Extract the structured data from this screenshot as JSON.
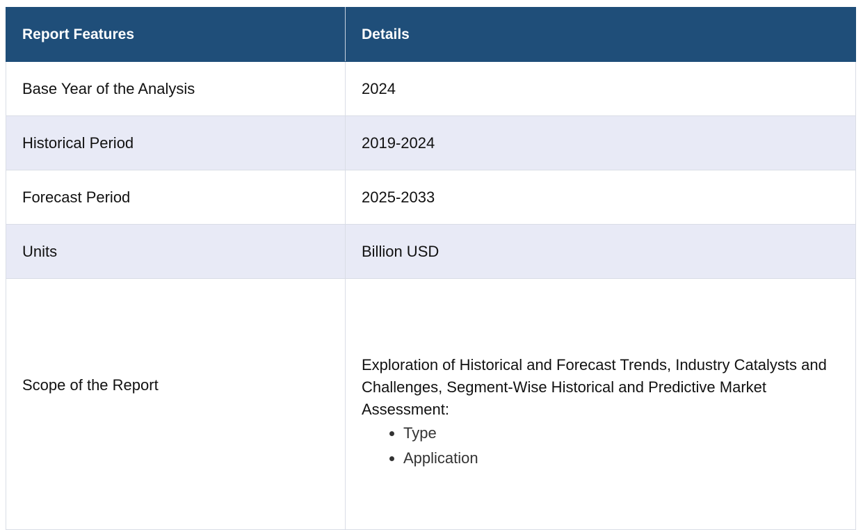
{
  "table": {
    "headers": [
      "Report Features",
      "Details"
    ],
    "rows": [
      {
        "feature": "Base Year of the Analysis",
        "detail": "2024"
      },
      {
        "feature": "Historical Period",
        "detail": "2019-2024"
      },
      {
        "feature": "Forecast Period",
        "detail": "2025-2033"
      },
      {
        "feature": "Units",
        "detail": "Billion USD"
      }
    ],
    "scope": {
      "feature": "Scope of the Report",
      "detail": "Exploration of Historical and Forecast Trends, Industry Catalysts and Challenges, Segment-Wise Historical and Predictive Market Assessment:",
      "items": [
        "Type",
        "Application"
      ]
    }
  },
  "colors": {
    "header_bg": "#1f4e79",
    "alt_row_bg": "#e8eaf6",
    "border": "#d9dde6"
  }
}
